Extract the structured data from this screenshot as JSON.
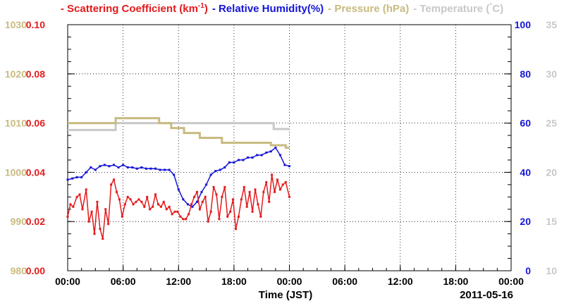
{
  "legend": [
    {
      "prefix": "- ",
      "text": "Scattering Coefficient (km",
      "sup": "-1",
      "suffix": ")",
      "color": "#e41a1c"
    },
    {
      "prefix": "- ",
      "text": "Relative Humidity(%)",
      "sup": "",
      "suffix": "",
      "color": "#1515d8"
    },
    {
      "prefix": "- ",
      "text": "Pressure (hPa)",
      "sup": "",
      "suffix": "",
      "color": "#c8bb80"
    },
    {
      "prefix": "- ",
      "text": "Temperature (",
      "sup": "°",
      "suffix": "C)",
      "color": "#c8c8c8"
    }
  ],
  "date_label": "2011-05-16",
  "colors": {
    "scattering": "#e41a1c",
    "humidity": "#1515d8",
    "pressure": "#c8bb80",
    "temperature": "#c8c8c8"
  },
  "chart_data": {
    "type": "line",
    "xlabel": "Time (JST)",
    "x_unit": "hours since start",
    "xlim": [
      0,
      48
    ],
    "x_tick_labels": [
      "00:00",
      "06:00",
      "12:00",
      "18:00",
      "00:00",
      "06:00",
      "12:00",
      "18:00",
      "00:00"
    ],
    "x_tick_values": [
      0,
      6,
      12,
      18,
      24,
      30,
      36,
      42,
      48
    ],
    "grid": true,
    "axes": {
      "scattering": {
        "side": "left-inner",
        "range": [
          0,
          0.1
        ],
        "ticks": [
          "0.00",
          "0.02",
          "0.04",
          "0.06",
          "0.08",
          "0.10"
        ]
      },
      "pressure": {
        "side": "left-outer",
        "range": [
          980,
          1030
        ],
        "ticks": [
          "980",
          "990",
          "1000",
          "1010",
          "1020",
          "1030"
        ]
      },
      "humidity": {
        "side": "right-inner",
        "range": [
          0,
          100
        ],
        "ticks": [
          "0",
          "20",
          "40",
          "60",
          "80",
          "100"
        ]
      },
      "temperature": {
        "side": "right-outer",
        "range": [
          10,
          35
        ],
        "ticks": [
          "10",
          "15",
          "20",
          "25",
          "30",
          "35"
        ]
      }
    },
    "series": [
      {
        "name": "Scattering Coefficient (km-1)",
        "key": "scattering",
        "x": [
          0,
          0.3,
          0.6,
          1,
          1.3,
          1.6,
          2,
          2.3,
          2.6,
          2.9,
          3.2,
          3.5,
          3.8,
          4.1,
          4.4,
          4.7,
          5,
          5.3,
          5.6,
          5.9,
          6.2,
          6.5,
          6.8,
          7.1,
          7.4,
          7.7,
          8,
          8.3,
          8.6,
          8.9,
          9.2,
          9.5,
          9.8,
          10.1,
          10.4,
          10.7,
          11,
          11.3,
          11.6,
          11.9,
          12.2,
          12.5,
          12.8,
          13.1,
          13.4,
          13.7,
          14,
          14.3,
          14.6,
          14.9,
          15.2,
          15.5,
          15.8,
          16.1,
          16.4,
          16.7,
          17,
          17.3,
          17.6,
          17.9,
          18.2,
          18.5,
          18.8,
          19.1,
          19.4,
          19.7,
          20,
          20.3,
          20.6,
          20.9,
          21.2,
          21.5,
          21.8,
          22.1,
          22.4,
          22.7,
          23,
          23.3,
          23.6,
          24
        ],
        "values": [
          0.022,
          0.027,
          0.026,
          0.03,
          0.031,
          0.025,
          0.033,
          0.02,
          0.024,
          0.015,
          0.028,
          0.017,
          0.013,
          0.025,
          0.019,
          0.035,
          0.037,
          0.032,
          0.029,
          0.022,
          0.027,
          0.03,
          0.029,
          0.027,
          0.028,
          0.029,
          0.028,
          0.026,
          0.03,
          0.025,
          0.026,
          0.031,
          0.027,
          0.026,
          0.028,
          0.025,
          0.026,
          0.023,
          0.024,
          0.024,
          0.022,
          0.021,
          0.021,
          0.023,
          0.027,
          0.03,
          0.032,
          0.025,
          0.028,
          0.03,
          0.02,
          0.024,
          0.034,
          0.031,
          0.021,
          0.03,
          0.034,
          0.022,
          0.024,
          0.029,
          0.017,
          0.022,
          0.029,
          0.034,
          0.026,
          0.032,
          0.024,
          0.033,
          0.027,
          0.022,
          0.032,
          0.036,
          0.028,
          0.039,
          0.032,
          0.037,
          0.033,
          0.035,
          0.036,
          0.03
        ]
      },
      {
        "name": "Relative Humidity(%)",
        "key": "humidity",
        "x": [
          0,
          0.5,
          1,
          1.5,
          2,
          2.5,
          3,
          3.5,
          4,
          4.5,
          5,
          5.5,
          6,
          6.5,
          7,
          7.5,
          8,
          8.5,
          9,
          9.5,
          10,
          10.5,
          11,
          11.5,
          12,
          12.5,
          13,
          13.5,
          14,
          14.5,
          15,
          15.5,
          16,
          16.5,
          17,
          17.5,
          18,
          18.5,
          19,
          19.5,
          20,
          20.5,
          21,
          21.5,
          22,
          22.5,
          23,
          23.5,
          24
        ],
        "values": [
          37,
          37.5,
          38,
          38,
          40,
          42,
          41,
          42.5,
          43,
          42.5,
          43,
          42,
          43,
          42,
          42,
          41.5,
          42,
          41.5,
          41.5,
          41.5,
          41,
          41,
          41,
          39,
          33,
          29,
          27,
          26,
          28,
          32,
          35,
          39,
          40.5,
          41,
          42,
          44,
          44,
          45,
          45,
          46,
          46,
          47,
          47,
          48,
          48.5,
          50,
          47,
          43,
          42.5
        ]
      },
      {
        "name": "Pressure (hPa)",
        "key": "pressure",
        "x": [
          0,
          5.2,
          5.2,
          9.9,
          9.9,
          11.2,
          11.2,
          12.6,
          12.6,
          14.3,
          14.3,
          16.7,
          16.7,
          22,
          22,
          23.6,
          23.6,
          24
        ],
        "values": [
          1010,
          1010,
          1011,
          1011,
          1010,
          1010,
          1009,
          1009,
          1008,
          1008,
          1007,
          1007,
          1006,
          1006,
          1005.5,
          1005.5,
          1005,
          1005
        ]
      },
      {
        "name": "Temperature (C)",
        "key": "temperature",
        "x": [
          0,
          5.2,
          5.2,
          13.2,
          13.2,
          22.3,
          22.3,
          24
        ],
        "values": [
          24.3,
          24.3,
          25,
          25,
          25,
          25,
          24.4,
          24.4
        ]
      }
    ]
  }
}
